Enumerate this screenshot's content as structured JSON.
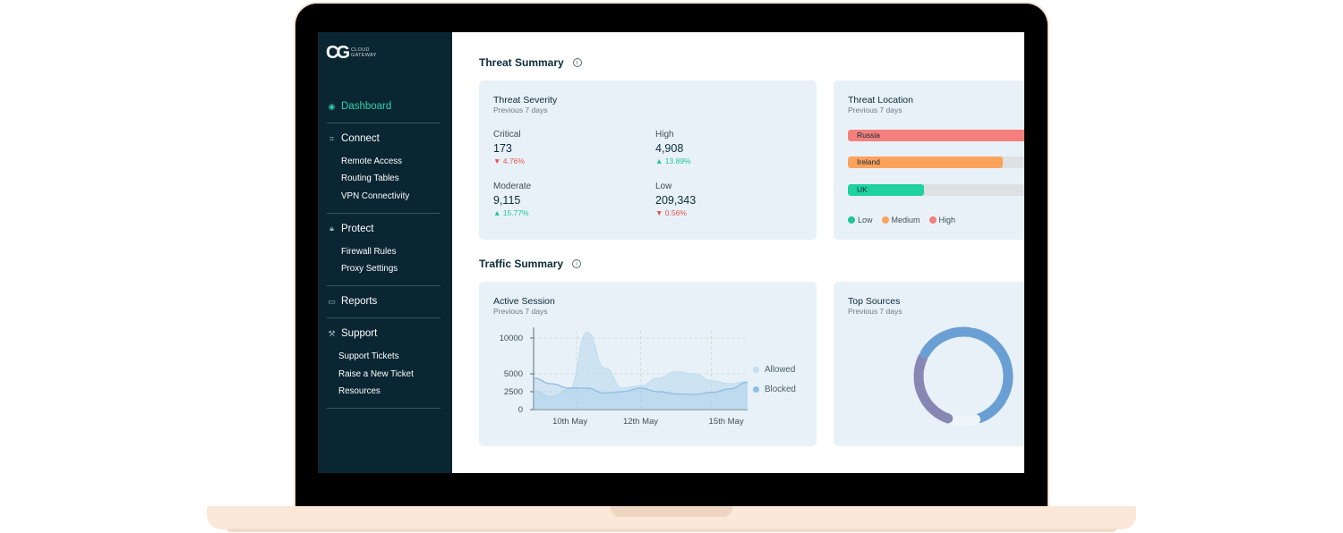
{
  "app": {
    "logo_mark": "CG",
    "logo_text_line1": "CLOUD",
    "logo_text_line2": "GATEWAY"
  },
  "sidebar": {
    "dashboard": "Dashboard",
    "connect": {
      "label": "Connect",
      "items": [
        "Remote Access",
        "Routing Tables",
        "VPN Connectivity"
      ]
    },
    "protect": {
      "label": "Protect",
      "items": [
        "Firewall Rules",
        "Proxy Settings"
      ]
    },
    "reports": "Reports",
    "support": {
      "label": "Support",
      "items": [
        "Support Tickets",
        "Raise a New Ticket",
        "Resources"
      ]
    }
  },
  "threat_summary": {
    "title": "Threat Summary",
    "info": "i",
    "severity": {
      "title": "Threat Severity",
      "subtitle": "Previous 7 days",
      "metrics": [
        {
          "label": "Critical",
          "value": "173",
          "change": "▼ 4.76%",
          "trend": "down"
        },
        {
          "label": "High",
          "value": "4,908",
          "change": "▲ 13.89%",
          "trend": "up"
        },
        {
          "label": "Moderate",
          "value": "9,115",
          "change": "▲ 15.77%",
          "trend": "up"
        },
        {
          "label": "Low",
          "value": "209,343",
          "change": "▼ 0.56%",
          "trend": "down"
        }
      ]
    },
    "location": {
      "title": "Threat Location",
      "subtitle": "Previous 7 days",
      "bars": [
        {
          "label": "Russia",
          "fill_fraction": 1.0,
          "color": "#f47f7c"
        },
        {
          "label": "Ireland",
          "fill_fraction": 0.75,
          "color": "#fba35b"
        },
        {
          "label": "UK",
          "fill_fraction": 0.37,
          "color": "#1fd29f"
        }
      ],
      "legend": [
        {
          "label": "Low",
          "color": "#1fc495"
        },
        {
          "label": "Medium",
          "color": "#fba35b"
        },
        {
          "label": "High",
          "color": "#f47f7c"
        }
      ]
    }
  },
  "traffic_summary": {
    "title": "Traffic Summary",
    "info": "i",
    "active_session": {
      "title": "Active Session",
      "subtitle": "Previous 7 days",
      "legend": [
        {
          "label": "Allowed",
          "color": "#c3def0"
        },
        {
          "label": "Blocked",
          "color": "#8fbfe3"
        }
      ]
    },
    "top_sources": {
      "title": "Top Sources",
      "subtitle": "Previous 7 days"
    }
  },
  "chart_data": [
    {
      "type": "area",
      "yticks": [
        "10000",
        "5000",
        "2500",
        "0"
      ],
      "xticks": [
        "10th May",
        "12th May",
        "15th May"
      ],
      "ylim": [
        0,
        11000
      ],
      "x": [
        0,
        1,
        2,
        3,
        4,
        5,
        6,
        7,
        8,
        9,
        10,
        11,
        12
      ],
      "series": [
        {
          "name": "Allowed",
          "values": [
            2600,
            1800,
            2800,
            10800,
            5800,
            3000,
            3300,
            4400,
            5300,
            5000,
            4000,
            3600,
            3900
          ]
        },
        {
          "name": "Blocked",
          "values": [
            4400,
            3600,
            3000,
            3000,
            2300,
            2500,
            3000,
            2500,
            2200,
            2100,
            2400,
            2900,
            3800
          ]
        }
      ]
    },
    {
      "type": "pie",
      "segments": [
        {
          "value": 42,
          "color": "#6a9fd4"
        },
        {
          "value": 10,
          "color": "#eff5fa"
        },
        {
          "value": 28,
          "color": "#8787b4"
        },
        {
          "value": 20,
          "color": "#6a9fd4"
        }
      ]
    }
  ]
}
